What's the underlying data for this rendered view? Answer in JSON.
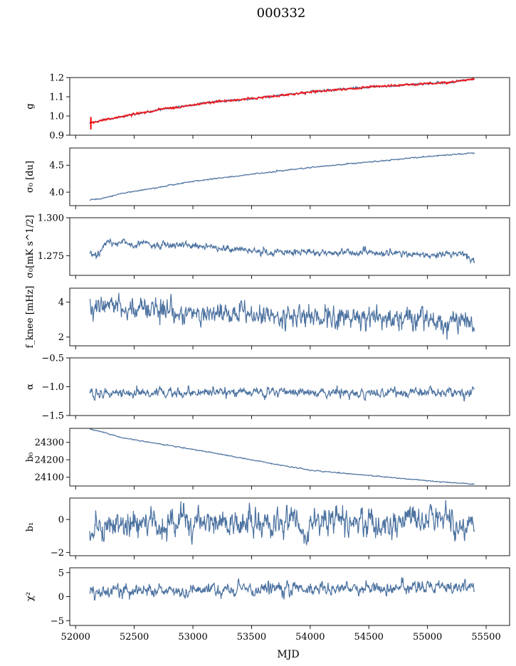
{
  "figure_title": "000332",
  "x_axis_label": "MJD",
  "chart_data": {
    "type": "line",
    "title": "000332",
    "xlabel": "MJD",
    "xlim": [
      51950,
      55700
    ],
    "data_x_range": [
      52120,
      55400
    ],
    "x_ticks": [
      52000,
      52500,
      53000,
      53500,
      54000,
      54500,
      55000,
      55500
    ],
    "series_color": "#4c72a0",
    "overlay_color": "#ff0000",
    "panels": [
      {
        "key": "g",
        "ylabel": "g",
        "ylim": [
          0.9,
          1.2
        ],
        "yticks": [
          0.9,
          1.0,
          1.1,
          1.2
        ],
        "tick_decimals": 1,
        "trend": [
          [
            52120,
            0.963
          ],
          [
            52300,
            0.985
          ],
          [
            52500,
            1.01
          ],
          [
            52800,
            1.04
          ],
          [
            53200,
            1.075
          ],
          [
            53500,
            1.09
          ],
          [
            54000,
            1.125
          ],
          [
            54500,
            1.15
          ],
          [
            54800,
            1.162
          ],
          [
            55000,
            1.168
          ],
          [
            55200,
            1.175
          ],
          [
            55400,
            1.195
          ]
        ],
        "noise": 0.003,
        "overlay": {
          "trend": [
            [
              52120,
              0.963
            ],
            [
              52300,
              0.985
            ],
            [
              52500,
              1.01
            ],
            [
              52800,
              1.04
            ],
            [
              53200,
              1.075
            ],
            [
              53500,
              1.09
            ],
            [
              54000,
              1.125
            ],
            [
              54500,
              1.15
            ],
            [
              54800,
              1.162
            ],
            [
              55000,
              1.168
            ],
            [
              55200,
              1.175
            ],
            [
              55400,
              1.195
            ]
          ],
          "noise": 0.004,
          "spike_at": 52130,
          "spike_range": [
            0.93,
            0.995
          ]
        }
      },
      {
        "key": "sigma0_du",
        "ylabel": "σ₀ [du]",
        "ylim": [
          3.75,
          4.82
        ],
        "yticks": [
          4.0,
          4.5
        ],
        "tick_decimals": 1,
        "trend": [
          [
            52120,
            3.86
          ],
          [
            52200,
            3.87
          ],
          [
            52400,
            3.98
          ],
          [
            53000,
            4.2
          ],
          [
            53500,
            4.33
          ],
          [
            54000,
            4.46
          ],
          [
            54500,
            4.56
          ],
          [
            55000,
            4.66
          ],
          [
            55400,
            4.73
          ]
        ],
        "noise": 0.006
      },
      {
        "key": "sigma0_mK",
        "ylabel": "σ₀[mK s^1/2]",
        "ylim": [
          1.262,
          1.3
        ],
        "yticks": [
          1.275,
          1.3
        ],
        "tick_decimals": 3,
        "trend": [
          [
            52120,
            1.277
          ],
          [
            52180,
            1.274
          ],
          [
            52260,
            1.284
          ],
          [
            52400,
            1.283
          ],
          [
            52800,
            1.282
          ],
          [
            53100,
            1.281
          ],
          [
            53500,
            1.278
          ],
          [
            54000,
            1.277
          ],
          [
            54500,
            1.277
          ],
          [
            55000,
            1.276
          ],
          [
            55300,
            1.276
          ],
          [
            55400,
            1.273
          ]
        ],
        "noise": 0.0012
      },
      {
        "key": "fknee",
        "ylabel": "f_knee [mHz]",
        "ylim": [
          1.5,
          4.8
        ],
        "yticks": [
          2,
          4
        ],
        "tick_decimals": 0,
        "trend": [
          [
            52120,
            3.8
          ],
          [
            52400,
            3.7
          ],
          [
            53000,
            3.3
          ],
          [
            54000,
            3.1
          ],
          [
            55000,
            3.0
          ],
          [
            55400,
            2.9
          ]
        ],
        "noise": 0.35
      },
      {
        "key": "alpha",
        "ylabel": "α",
        "ylim": [
          -1.5,
          -0.5
        ],
        "yticks": [
          -1.5,
          -1.0,
          -0.5
        ],
        "tick_decimals": 1,
        "trend": [
          [
            52120,
            -1.1
          ],
          [
            55400,
            -1.1
          ]
        ],
        "noise": 0.045
      },
      {
        "key": "b0",
        "ylabel": "b₀",
        "ylim": [
          24050,
          24380
        ],
        "yticks": [
          24100,
          24200,
          24300
        ],
        "tick_decimals": 0,
        "trend": [
          [
            52120,
            24375
          ],
          [
            52200,
            24365
          ],
          [
            52400,
            24325
          ],
          [
            53000,
            24260
          ],
          [
            53500,
            24200
          ],
          [
            54000,
            24140
          ],
          [
            54500,
            24110
          ],
          [
            55000,
            24080
          ],
          [
            55400,
            24060
          ]
        ],
        "noise": 1.5
      },
      {
        "key": "b1",
        "ylabel": "b₁",
        "ylim": [
          -2.2,
          1.3
        ],
        "yticks": [
          -2,
          0
        ],
        "tick_decimals": 0,
        "trend": [
          [
            52120,
            -0.5
          ],
          [
            53000,
            -0.3
          ],
          [
            54000,
            -0.2
          ],
          [
            55000,
            -0.1
          ],
          [
            55400,
            -0.2
          ]
        ],
        "noise": 0.45
      },
      {
        "key": "chi2",
        "ylabel": "χ²",
        "ylim": [
          -6,
          6
        ],
        "yticks": [
          -5,
          0,
          5
        ],
        "tick_decimals": 0,
        "trend": [
          [
            52120,
            0.7
          ],
          [
            52500,
            1.3
          ],
          [
            53500,
            1.6
          ],
          [
            54500,
            1.9
          ],
          [
            55400,
            2.3
          ]
        ],
        "noise": 0.7
      }
    ]
  }
}
